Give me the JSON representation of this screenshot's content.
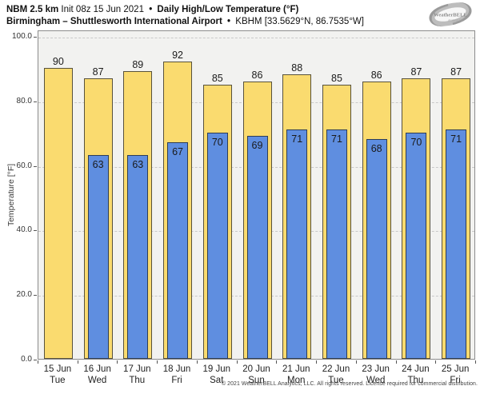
{
  "header": {
    "line1": {
      "product": "NBM 2.5 km",
      "init": "Init 08z 15 Jun 2021",
      "bullet": "•",
      "metric": "Daily High/Low Temperature (°F)"
    },
    "line2": {
      "station": "Birmingham – Shuttlesworth International Airport",
      "bullet": "•",
      "station_meta": "KBHM [33.5629°N, 86.7535°W]"
    }
  },
  "logo": {
    "brand": "WeatherBELL",
    "sub": "Analytics LLC"
  },
  "chart_data": {
    "type": "bar",
    "title": "Daily High/Low Temperature (°F)",
    "subtitle": "Birmingham – Shuttlesworth International Airport (KBHM)",
    "categories": [
      {
        "date": "15 Jun",
        "day": "Tue"
      },
      {
        "date": "16 Jun",
        "day": "Wed"
      },
      {
        "date": "17 Jun",
        "day": "Thu"
      },
      {
        "date": "18 Jun",
        "day": "Fri"
      },
      {
        "date": "19 Jun",
        "day": "Sat"
      },
      {
        "date": "20 Jun",
        "day": "Sun"
      },
      {
        "date": "21 Jun",
        "day": "Mon"
      },
      {
        "date": "22 Jun",
        "day": "Tue"
      },
      {
        "date": "23 Jun",
        "day": "Wed"
      },
      {
        "date": "24 Jun",
        "day": "Thu"
      },
      {
        "date": "25 Jun",
        "day": "Fri"
      }
    ],
    "series": [
      {
        "name": "Daily High",
        "color": "#fadb6f",
        "values": [
          90,
          87,
          89,
          92,
          85,
          86,
          88,
          85,
          86,
          87,
          87
        ]
      },
      {
        "name": "Daily Low",
        "color": "#5f8ee0",
        "values": [
          null,
          63,
          63,
          67,
          70,
          69,
          71,
          71,
          68,
          70,
          71
        ]
      }
    ],
    "ylabel": "Temperature [°F]",
    "xlabel": "",
    "ylim": [
      0,
      100
    ],
    "yticks": [
      0,
      20,
      40,
      60,
      80,
      100
    ],
    "ytick_labels": [
      "0.0",
      "20.0",
      "40.0",
      "60.0",
      "80.0",
      "100.0"
    ],
    "grid": "horizontal-dashed",
    "legend_position": "none"
  },
  "footer": {
    "copyright": "© 2021 WeatherBELL Analytics, LLC. All rights reserved. License required for commercial distribution."
  },
  "colors": {
    "high_fill": "#fadb6f",
    "low_fill": "#5f8ee0",
    "plot_bg": "#f2f2f0",
    "plot_border": "#8c8c8c",
    "gridline": "#c9c9c9",
    "text": "#1a1a1a"
  }
}
